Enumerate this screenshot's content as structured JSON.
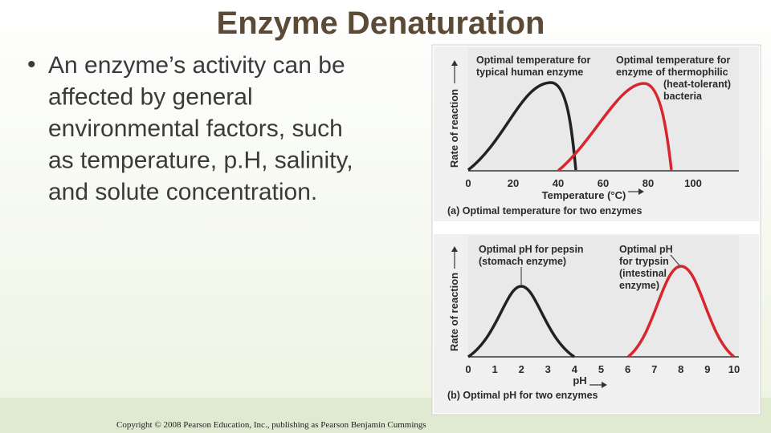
{
  "title": "Enzyme Denaturation",
  "bullet": {
    "marker": "•",
    "lines": [
      "An enzyme’s activity can be",
      "affected by general",
      "environmental factors, such",
      "as temperature, p.H, salinity,",
      "and solute concentration."
    ]
  },
  "figure": {
    "panel_a": {
      "y_label": "Rate of reaction",
      "human_label": [
        "Optimal temperature for",
        "typical human enzyme"
      ],
      "thermophile_label": [
        "Optimal temperature for",
        "enzyme of thermophilic",
        "(heat-tolerant)",
        "bacteria"
      ],
      "x_ticks": [
        0,
        20,
        40,
        60,
        80,
        100
      ],
      "x_label": "Temperature (°C)",
      "caption": "(a) Optimal temperature for two enzymes"
    },
    "panel_b": {
      "y_label": "Rate of reaction",
      "pepsin_label": [
        "Optimal pH for pepsin",
        "(stomach enzyme)"
      ],
      "trypsin_label": [
        "Optimal pH",
        "for trypsin",
        "(intestinal",
        "enzyme)"
      ],
      "x_ticks": [
        0,
        1,
        2,
        3,
        4,
        5,
        6,
        7,
        8,
        9,
        10
      ],
      "x_label": "pH",
      "caption": "(b) Optimal pH for two enzymes"
    }
  },
  "copyright": "Copyright © 2008 Pearson Education, Inc., publishing as Pearson Benjamin Cummings"
}
